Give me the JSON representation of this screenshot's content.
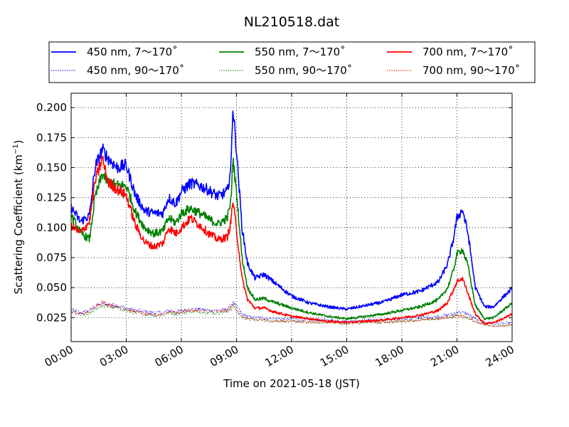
{
  "chart_data": {
    "type": "line",
    "title": "NL210518.dat",
    "xlabel": "Time on 2021-05-18 (JST)",
    "ylabel": "Scattering Coefficient (km",
    "ylabel_unit_sup": "−1",
    "ylabel_suffix": ")",
    "xlim": [
      0,
      24
    ],
    "ylim": [
      0.005,
      0.212
    ],
    "x_ticks": [
      0,
      3,
      6,
      9,
      12,
      15,
      18,
      21,
      24
    ],
    "x_tick_labels": [
      "00:00",
      "03:00",
      "06:00",
      "09:00",
      "12:00",
      "15:00",
      "18:00",
      "21:00",
      "24:00"
    ],
    "y_ticks": [
      0.025,
      0.05,
      0.075,
      0.1,
      0.125,
      0.15,
      0.175,
      0.2
    ],
    "y_tick_labels": [
      "0.025",
      "0.050",
      "0.075",
      "0.100",
      "0.125",
      "0.150",
      "0.175",
      "0.200"
    ],
    "grid": true,
    "legend_placement": "top, above plot, 3 columns",
    "x": [
      0,
      0.5,
      1,
      1.3,
      1.7,
      2,
      2.5,
      3,
      3.5,
      4,
      4.5,
      5,
      5.3,
      5.7,
      6,
      6.5,
      7,
      7.5,
      8,
      8.5,
      8.7,
      8.8,
      9,
      9.3,
      9.6,
      10,
      10.5,
      11,
      12,
      13,
      14,
      15,
      16,
      17,
      18,
      19,
      20,
      20.5,
      20.8,
      21,
      21.3,
      21.6,
      22,
      22.5,
      23,
      23.5,
      24
    ],
    "series": [
      {
        "name": "450 nm, 7～170˚",
        "color": "#0000ff",
        "style": "solid",
        "values": [
          0.117,
          0.105,
          0.11,
          0.15,
          0.165,
          0.158,
          0.15,
          0.152,
          0.127,
          0.114,
          0.112,
          0.112,
          0.125,
          0.12,
          0.13,
          0.137,
          0.135,
          0.131,
          0.126,
          0.13,
          0.15,
          0.201,
          0.165,
          0.1,
          0.07,
          0.058,
          0.061,
          0.055,
          0.043,
          0.037,
          0.034,
          0.032,
          0.035,
          0.038,
          0.044,
          0.047,
          0.055,
          0.07,
          0.09,
          0.108,
          0.115,
          0.095,
          0.05,
          0.034,
          0.034,
          0.042,
          0.049
        ]
      },
      {
        "name": "450 nm, 90～170˚",
        "color": "#0000ff",
        "style": "dotted",
        "values": [
          0.032,
          0.029,
          0.031,
          0.034,
          0.037,
          0.036,
          0.035,
          0.033,
          0.031,
          0.03,
          0.029,
          0.029,
          0.031,
          0.03,
          0.031,
          0.032,
          0.032,
          0.031,
          0.031,
          0.032,
          0.035,
          0.038,
          0.034,
          0.028,
          0.026,
          0.025,
          0.025,
          0.024,
          0.024,
          0.023,
          0.023,
          0.022,
          0.023,
          0.023,
          0.024,
          0.025,
          0.026,
          0.027,
          0.028,
          0.03,
          0.029,
          0.028,
          0.024,
          0.021,
          0.02,
          0.02,
          0.021
        ]
      },
      {
        "name": "550 nm, 7～170˚",
        "color": "#008000",
        "style": "solid",
        "values": [
          0.11,
          0.096,
          0.09,
          0.125,
          0.145,
          0.138,
          0.135,
          0.135,
          0.113,
          0.1,
          0.095,
          0.097,
          0.108,
          0.104,
          0.112,
          0.116,
          0.112,
          0.107,
          0.103,
          0.108,
          0.122,
          0.158,
          0.13,
          0.075,
          0.05,
          0.04,
          0.041,
          0.038,
          0.033,
          0.029,
          0.026,
          0.024,
          0.026,
          0.028,
          0.031,
          0.034,
          0.04,
          0.05,
          0.064,
          0.078,
          0.082,
          0.068,
          0.035,
          0.024,
          0.025,
          0.031,
          0.037
        ]
      },
      {
        "name": "550 nm, 90～170˚",
        "color": "#008000",
        "style": "dotted",
        "values": [
          0.03,
          0.027,
          0.028,
          0.032,
          0.035,
          0.034,
          0.033,
          0.031,
          0.029,
          0.028,
          0.027,
          0.027,
          0.029,
          0.028,
          0.029,
          0.03,
          0.03,
          0.029,
          0.029,
          0.03,
          0.032,
          0.035,
          0.031,
          0.025,
          0.024,
          0.023,
          0.023,
          0.022,
          0.022,
          0.021,
          0.021,
          0.02,
          0.021,
          0.021,
          0.022,
          0.023,
          0.024,
          0.025,
          0.026,
          0.027,
          0.026,
          0.025,
          0.022,
          0.019,
          0.018,
          0.018,
          0.019
        ]
      },
      {
        "name": "700 nm, 7～170˚",
        "color": "#ff0000",
        "style": "solid",
        "values": [
          0.102,
          0.095,
          0.105,
          0.138,
          0.158,
          0.138,
          0.132,
          0.127,
          0.102,
          0.088,
          0.084,
          0.087,
          0.1,
          0.095,
          0.1,
          0.108,
          0.102,
          0.095,
          0.09,
          0.092,
          0.105,
          0.123,
          0.098,
          0.058,
          0.04,
          0.033,
          0.033,
          0.03,
          0.026,
          0.024,
          0.022,
          0.021,
          0.022,
          0.023,
          0.025,
          0.027,
          0.031,
          0.038,
          0.048,
          0.055,
          0.058,
          0.045,
          0.028,
          0.02,
          0.021,
          0.024,
          0.028
        ]
      },
      {
        "name": "700 nm, 90～170˚",
        "color": "#ff0000",
        "style": "dotted",
        "values": [
          0.03,
          0.028,
          0.03,
          0.035,
          0.038,
          0.036,
          0.034,
          0.032,
          0.03,
          0.028,
          0.027,
          0.028,
          0.03,
          0.029,
          0.03,
          0.031,
          0.031,
          0.03,
          0.03,
          0.031,
          0.033,
          0.036,
          0.032,
          0.026,
          0.024,
          0.023,
          0.023,
          0.022,
          0.022,
          0.021,
          0.021,
          0.02,
          0.021,
          0.021,
          0.022,
          0.023,
          0.024,
          0.025,
          0.026,
          0.027,
          0.026,
          0.025,
          0.022,
          0.019,
          0.018,
          0.018,
          0.019
        ]
      }
    ]
  }
}
